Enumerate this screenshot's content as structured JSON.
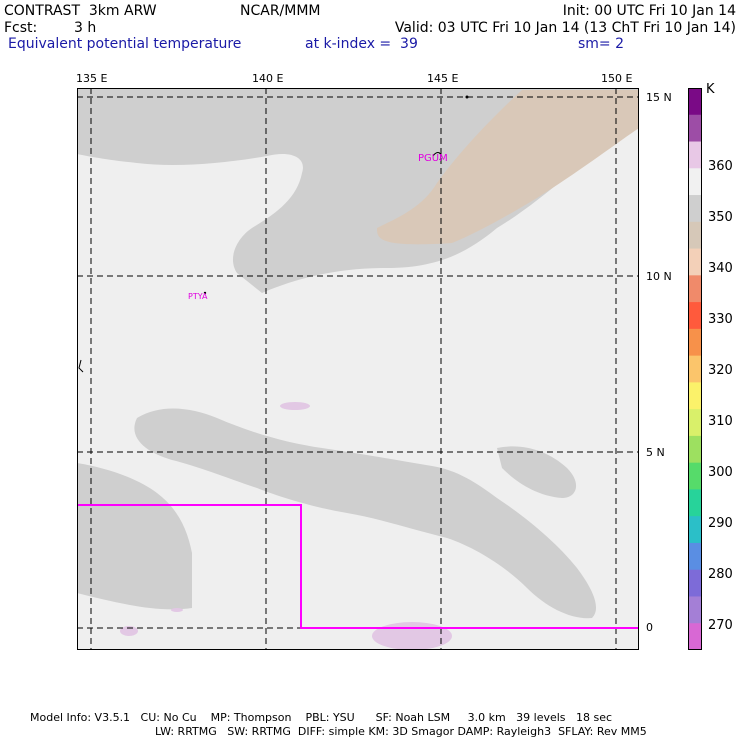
{
  "header": {
    "model": "CONTRAST  3km ARW",
    "center": "NCAR/MMM",
    "init": "Init: 00 UTC Fri 10 Jan 14",
    "fcst_label": "Fcst:",
    "fcst_value": "3 h",
    "valid": "Valid: 03 UTC Fri 10 Jan 14 (13 ChT Fri 10 Jan 14)",
    "field": "Equivalent potential temperature",
    "level": "at k-index =  39",
    "smooth": "sm= 2"
  },
  "axes": {
    "lon_labels": [
      "135 E",
      "140 E",
      "145 E",
      "150 E"
    ],
    "lat_labels": [
      "15 N",
      "10 N",
      "5 N",
      "0"
    ]
  },
  "map": {
    "stations": [
      {
        "id": "PGUM",
        "label": "PGUM"
      },
      {
        "id": "PTYA",
        "label": "PTYA"
      }
    ]
  },
  "colorbar": {
    "unit": "K",
    "labels": [
      "360",
      "350",
      "340",
      "330",
      "320",
      "310",
      "300",
      "290",
      "280",
      "270"
    ],
    "colors": [
      "#7a0a86",
      "#9d4da6",
      "#e8c8e6",
      "#f1f1f1",
      "#cfcfcf",
      "#d6c8b8",
      "#f3d0b8",
      "#f08a6a",
      "#ff5a3c",
      "#f7914a",
      "#fbc56b",
      "#fbf26a",
      "#d9f06a",
      "#9de060",
      "#56db6a",
      "#27d39a",
      "#2bbfc8",
      "#5a8ee3",
      "#7d6bd8",
      "#a47fd6",
      "#d868d4"
    ]
  },
  "footer": {
    "line1": "Model Info: V3.5.1   CU: No Cu    MP: Thompson    PBL: YSU      SF: Noah LSM     3.0 km   39 levels   18 sec",
    "line2": "LW: RRTMG   SW: RRTMG  DIFF: simple KM: 3D Smagor DAMP: Rayleigh3  SFLAY: Rev MM5"
  }
}
